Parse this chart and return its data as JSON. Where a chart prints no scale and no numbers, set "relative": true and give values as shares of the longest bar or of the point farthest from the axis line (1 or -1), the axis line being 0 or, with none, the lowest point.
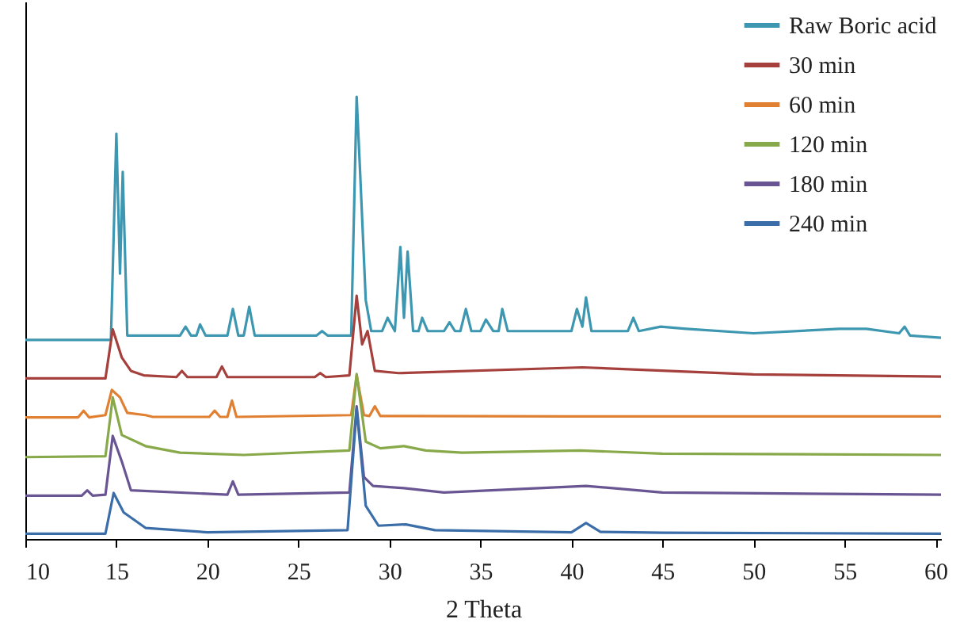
{
  "chart_data": {
    "type": "line",
    "xlabel": "2 Theta",
    "relative": true,
    "xlim": [
      10,
      60.3
    ],
    "xticks": [
      10,
      15,
      20,
      25,
      30,
      35,
      40,
      45,
      50,
      55,
      60
    ],
    "grid": false,
    "legend": "top right",
    "marker": "none",
    "line_style": "solid",
    "series": [
      {
        "name": "Raw Boric acid",
        "color": "#3e97b0",
        "x": [
          10,
          14.7,
          15.0,
          15.2,
          15.35,
          15.6,
          18.5,
          18.8,
          19.1,
          19.4,
          19.6,
          19.9,
          21.1,
          21.4,
          21.7,
          22.0,
          22.3,
          22.6,
          26.0,
          26.3,
          26.6,
          27.9,
          28.2,
          28.4,
          28.7,
          29.0,
          29.6,
          29.9,
          30.3,
          30.6,
          30.8,
          31.0,
          31.3,
          31.6,
          31.8,
          32.1,
          33.0,
          33.3,
          33.6,
          33.9,
          34.2,
          34.5,
          35.0,
          35.3,
          35.7,
          36.0,
          36.2,
          36.5,
          40.0,
          40.3,
          40.6,
          40.8,
          41.1,
          43.1,
          43.4,
          43.7,
          44.9,
          46.3,
          50,
          54.7,
          56.2,
          58.0,
          58.3,
          58.6,
          60.3
        ],
        "values": [
          0.45,
          0.45,
          0.916,
          0.6,
          0.83,
          0.46,
          0.46,
          0.48,
          0.46,
          0.46,
          0.485,
          0.46,
          0.46,
          0.52,
          0.46,
          0.46,
          0.525,
          0.46,
          0.46,
          0.47,
          0.46,
          0.46,
          1.0,
          0.82,
          0.54,
          0.47,
          0.47,
          0.5,
          0.47,
          0.66,
          0.5,
          0.65,
          0.47,
          0.47,
          0.5,
          0.47,
          0.47,
          0.49,
          0.47,
          0.47,
          0.52,
          0.47,
          0.47,
          0.496,
          0.47,
          0.47,
          0.52,
          0.47,
          0.47,
          0.52,
          0.48,
          0.546,
          0.47,
          0.47,
          0.5,
          0.47,
          0.48,
          0.475,
          0.465,
          0.475,
          0.475,
          0.465,
          0.48,
          0.46,
          0.455
        ]
      },
      {
        "name": "30 min",
        "color": "#a5403d",
        "x": [
          10,
          14.4,
          14.8,
          15.3,
          15.8,
          16.5,
          18.3,
          18.6,
          18.9,
          20.5,
          20.8,
          21.1,
          25.9,
          26.2,
          26.5,
          27.8,
          28.2,
          28.5,
          28.8,
          29.2,
          30.5,
          40.6,
          50,
          60.3
        ],
        "values": [
          0.363,
          0.363,
          0.474,
          0.41,
          0.38,
          0.37,
          0.366,
          0.38,
          0.366,
          0.366,
          0.39,
          0.366,
          0.366,
          0.375,
          0.366,
          0.37,
          0.55,
          0.44,
          0.47,
          0.38,
          0.375,
          0.388,
          0.372,
          0.367
        ]
      },
      {
        "name": "60 min",
        "color": "#e08032",
        "x": [
          10,
          12.9,
          13.2,
          13.5,
          14.4,
          14.75,
          15.2,
          15.6,
          16.6,
          17.0,
          20.1,
          20.4,
          20.7,
          21.1,
          21.35,
          21.6,
          27.9,
          28.2,
          28.6,
          28.9,
          29.2,
          29.5,
          40,
          60.3
        ],
        "values": [
          0.275,
          0.275,
          0.29,
          0.275,
          0.28,
          0.337,
          0.32,
          0.285,
          0.28,
          0.276,
          0.276,
          0.29,
          0.276,
          0.276,
          0.313,
          0.276,
          0.28,
          0.37,
          0.28,
          0.278,
          0.3,
          0.278,
          0.277,
          0.277
        ]
      },
      {
        "name": "120 min",
        "color": "#88a94a",
        "x": [
          10,
          14.4,
          14.8,
          15.3,
          16.6,
          18.5,
          22,
          27.8,
          28.2,
          28.7,
          29.5,
          30.8,
          32.0,
          34,
          40.5,
          45,
          60.3
        ],
        "values": [
          0.185,
          0.187,
          0.32,
          0.235,
          0.21,
          0.195,
          0.19,
          0.2,
          0.373,
          0.22,
          0.205,
          0.21,
          0.2,
          0.195,
          0.2,
          0.193,
          0.19
        ]
      },
      {
        "name": "180 min",
        "color": "#6a5593",
        "x": [
          10,
          13.1,
          13.4,
          13.7,
          14.4,
          14.8,
          15.3,
          15.8,
          21.1,
          21.4,
          21.7,
          27.8,
          28.2,
          28.6,
          29.1,
          30.8,
          33,
          40.8,
          45,
          60.3
        ],
        "values": [
          0.098,
          0.098,
          0.11,
          0.098,
          0.1,
          0.233,
          0.175,
          0.11,
          0.1,
          0.13,
          0.1,
          0.105,
          0.3,
          0.14,
          0.12,
          0.115,
          0.105,
          0.12,
          0.105,
          0.1
        ]
      },
      {
        "name": "240 min",
        "color": "#3b6ea8",
        "x": [
          10,
          14.4,
          14.85,
          15.4,
          16.6,
          20,
          27.7,
          28.2,
          28.7,
          29.4,
          30.9,
          32.5,
          40,
          40.8,
          41.6,
          45,
          60.3
        ],
        "values": [
          0.012,
          0.012,
          0.104,
          0.06,
          0.025,
          0.015,
          0.02,
          0.294,
          0.075,
          0.03,
          0.033,
          0.02,
          0.015,
          0.036,
          0.016,
          0.014,
          0.012
        ]
      }
    ]
  }
}
